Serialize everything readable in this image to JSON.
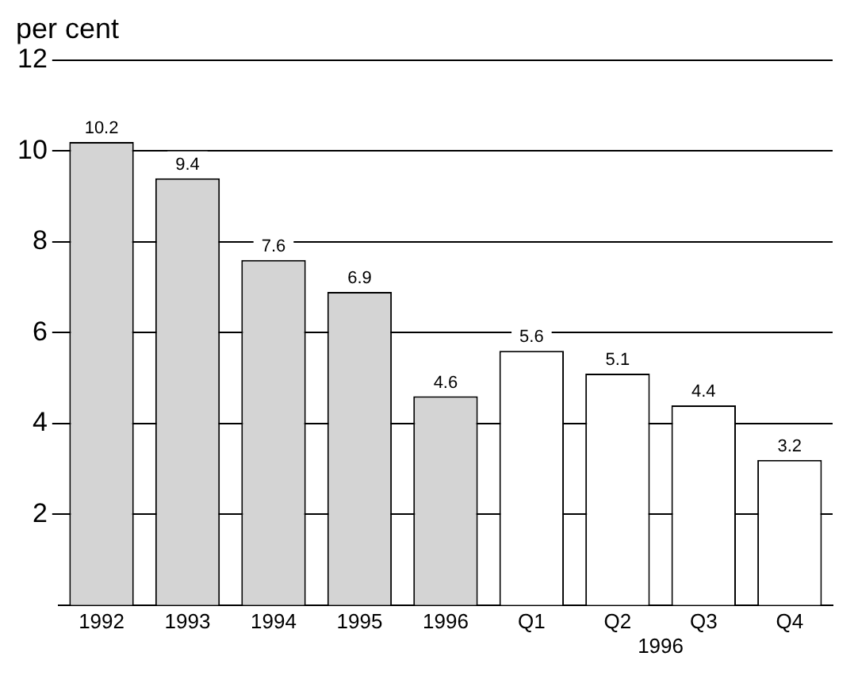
{
  "chart_data": {
    "type": "bar",
    "ylabel": "per cent",
    "categories": [
      "1992",
      "1993",
      "1994",
      "1995",
      "1996",
      "Q1",
      "Q2",
      "Q3",
      "Q4"
    ],
    "values": [
      10.2,
      9.4,
      7.6,
      6.9,
      4.6,
      5.6,
      5.1,
      4.4,
      3.2
    ],
    "colors": [
      "#d4d4d4",
      "#d4d4d4",
      "#d4d4d4",
      "#d4d4d4",
      "#d4d4d4",
      "#ffffff",
      "#ffffff",
      "#ffffff",
      "#ffffff"
    ],
    "ylim": [
      0,
      12
    ],
    "yticks": [
      2,
      4,
      6,
      8,
      10,
      12
    ],
    "grid": "y",
    "data_labels": true,
    "annotations": [
      "1996"
    ]
  }
}
